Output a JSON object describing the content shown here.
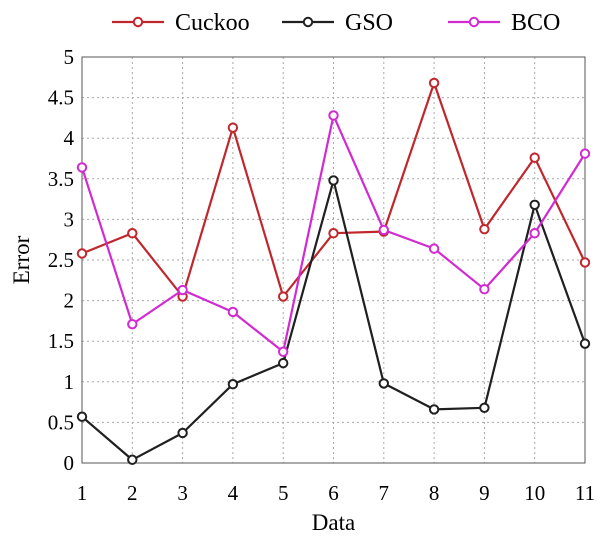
{
  "chart_data": {
    "type": "line",
    "title": "",
    "xlabel": "Data",
    "ylabel": "Error",
    "x": [
      1,
      2,
      3,
      4,
      5,
      6,
      7,
      8,
      9,
      10,
      11
    ],
    "xlim": [
      1,
      11
    ],
    "ylim": [
      0,
      5
    ],
    "yticks": [
      "0",
      "0.5",
      "1",
      "1.5",
      "2",
      "2.5",
      "3",
      "3.5",
      "4",
      "4.5",
      "5"
    ],
    "xticks": [
      "1",
      "2",
      "3",
      "4",
      "5",
      "6",
      "7",
      "8",
      "9",
      "10",
      "11"
    ],
    "grid": true,
    "legend_position": "top",
    "series": [
      {
        "name": "Cuckoo",
        "color": "#c0272d",
        "values": [
          2.58,
          2.83,
          2.05,
          4.13,
          2.05,
          2.83,
          2.85,
          4.68,
          2.88,
          3.76,
          2.47
        ]
      },
      {
        "name": "GSO",
        "color": "#202020",
        "values": [
          0.57,
          0.04,
          0.37,
          0.97,
          1.23,
          3.48,
          0.98,
          0.66,
          0.68,
          3.18,
          1.47
        ]
      },
      {
        "name": "BCO",
        "color": "#d22ad2",
        "values": [
          3.64,
          1.71,
          2.13,
          1.86,
          1.37,
          4.28,
          2.87,
          2.64,
          2.14,
          2.83,
          3.81
        ]
      }
    ]
  }
}
